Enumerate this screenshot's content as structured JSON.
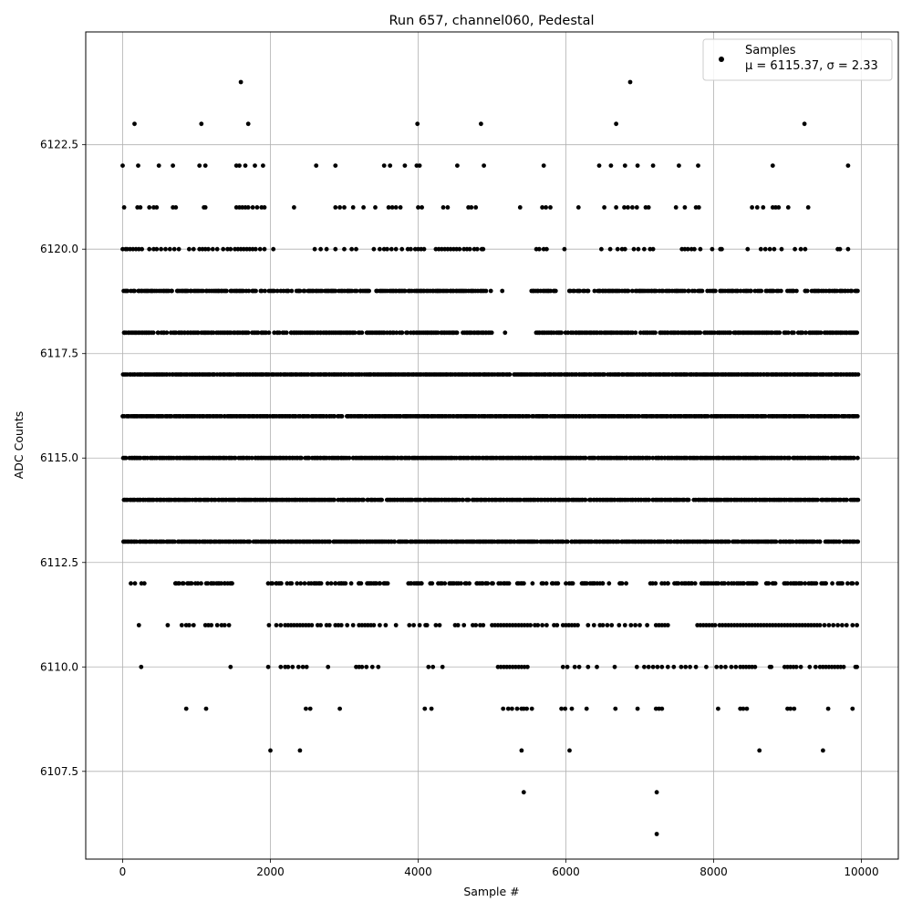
{
  "chart_data": {
    "type": "scatter",
    "title": "Run 657, channel060, Pedestal",
    "xlabel": "Sample #",
    "ylabel": "ADC Counts",
    "xlim": [
      -500,
      10500
    ],
    "ylim": [
      6105.4,
      6125.2
    ],
    "xticks": [
      0,
      2000,
      4000,
      6000,
      8000,
      10000
    ],
    "xtick_labels": [
      "0",
      "2000",
      "4000",
      "6000",
      "8000",
      "10000"
    ],
    "yticks": [
      6107.5,
      6110.0,
      6112.5,
      6115.0,
      6117.5,
      6120.0,
      6122.5
    ],
    "ytick_labels": [
      "6107.5",
      "6110.0",
      "6112.5",
      "6115.0",
      "6117.5",
      "6120.0",
      "6122.5"
    ],
    "grid": true,
    "legend_position": "top-right",
    "n_samples": 10000,
    "series": [
      {
        "name": "Samples",
        "stats_label": "μ = 6115.37, σ = 2.33",
        "color": "#000000",
        "marker": "circle",
        "levels": [
          {
            "y": 6124,
            "x": [
              1600,
              6870
            ]
          },
          {
            "y": 6123,
            "x": [
              160,
              1065,
              1700,
              3990,
              4850,
              6680,
              9230
            ]
          },
          {
            "y": 6122,
            "x": [
              0,
              210,
              490,
              680,
              1040,
              1120,
              1540,
              1580,
              1660,
              1790,
              1900,
              2620,
              2880,
              3540,
              3620,
              3820,
              3980,
              4020,
              4530,
              4890,
              5700,
              6450,
              6610,
              6800,
              6970,
              7180,
              7530,
              7790,
              8800,
              9820
            ]
          },
          {
            "y": 6121,
            "x": [
              20,
              200,
              240,
              360,
              420,
              460,
              680,
              720,
              1100,
              1120,
              1540,
              1580,
              1620,
              1660,
              1700,
              1760,
              1820,
              1880,
              1920,
              2320,
              2880,
              2940,
              3000,
              3120,
              3260,
              3420,
              3600,
              3650,
              3700,
              3760,
              4000,
              4050,
              4340,
              4400,
              4680,
              4720,
              4780,
              5380,
              5680,
              5730,
              5790,
              6170,
              6520,
              6680,
              6790,
              6840,
              6900,
              6960,
              7080,
              7120,
              7490,
              7610,
              7760,
              7800,
              8520,
              8590,
              8670,
              8800,
              8840,
              8880,
              9010,
              9280
            ]
          },
          {
            "y": 6120,
            "x": [
              0,
              40,
              60,
              100,
              140,
              180,
              220,
              260,
              360,
              420,
              460,
              520,
              580,
              640,
              700,
              760,
              900,
              960,
              1040,
              1080,
              1120,
              1160,
              1220,
              1280,
              1360,
              1420,
              1460,
              1520,
              1560,
              1600,
              1640,
              1680,
              1720,
              1760,
              1800,
              1860,
              1920,
              2040,
              2600,
              2680,
              2760,
              2880,
              3000,
              3100,
              3160,
              3400,
              3480,
              3540,
              3580,
              3640,
              3700,
              3780,
              3860,
              3900,
              3960,
              4000,
              4040,
              4080,
              4240,
              4280,
              4320,
              4360,
              4400,
              4440,
              4480,
              4520,
              4560,
              4620,
              4660,
              4700,
              4760,
              4800,
              4860,
              4880,
              5600,
              5640,
              5700,
              5740,
              5980,
              6480,
              6600,
              6700,
              6760,
              6800,
              6920,
              6980,
              7060,
              7140,
              7180,
              7570,
              7610,
              7650,
              7700,
              7740,
              7820,
              7980,
              8090,
              8110,
              8460,
              8640,
              8700,
              8760,
              8820,
              8920,
              9100,
              9180,
              9240,
              9680,
              9710,
              9820
            ]
          },
          {
            "y": 6119,
            "density": 0.75,
            "x_start": 0,
            "x_end": 9940,
            "step": 20,
            "gaps": [
              [
                5010,
                5100
              ],
              [
                5160,
                5500
              ],
              [
                5880,
                6030
              ]
            ]
          },
          {
            "y": 6118,
            "density": 0.85,
            "x_start": 0,
            "x_end": 9940,
            "step": 20,
            "gaps": [
              [
                5000,
                5150
              ],
              [
                5180,
                5400
              ],
              [
                5420,
                5560
              ]
            ]
          },
          {
            "y": 6117,
            "density": 0.95,
            "x_start": 0,
            "x_end": 9940,
            "step": 20,
            "gaps": []
          },
          {
            "y": 6116,
            "density": 0.95,
            "x_start": 0,
            "x_end": 9940,
            "step": 20,
            "gaps": []
          },
          {
            "y": 6115,
            "density": 0.95,
            "x_start": 0,
            "x_end": 9940,
            "step": 20,
            "gaps": []
          },
          {
            "y": 6114,
            "density": 0.95,
            "x_start": 0,
            "x_end": 9940,
            "step": 20,
            "gaps": []
          },
          {
            "y": 6113,
            "density": 0.9,
            "x_start": 0,
            "x_end": 9940,
            "step": 20,
            "gaps": []
          },
          {
            "y": 6112,
            "density": 0.55,
            "x_start": 100,
            "x_end": 9940,
            "step": 20,
            "gaps": [
              [
                300,
                620
              ],
              [
                1500,
                1950
              ],
              [
                3600,
                3850
              ],
              [
                6600,
                6700
              ],
              [
                6850,
                7000
              ]
            ]
          },
          {
            "y": 6111,
            "x": [
              220,
              610,
              800,
              860,
              900,
              960,
              1120,
              1160,
              1200,
              1280,
              1340,
              1380,
              1440,
              1980,
              2080,
              2140,
              2200,
              2240,
              2280,
              2320,
              2360,
              2400,
              2440,
              2480,
              2520,
              2560,
              2640,
              2680,
              2760,
              2800,
              2880,
              2920,
              2960,
              3040,
              3120,
              3200,
              3240,
              3280,
              3320,
              3360,
              3400,
              3480,
              3560,
              3700,
              3880,
              3940,
              4020,
              4100,
              4120,
              4240,
              4290,
              4500,
              4540,
              4620,
              4740,
              4780,
              4840,
              4880,
              5000,
              5040,
              5080,
              5120,
              5160,
              5200,
              5240,
              5280,
              5320,
              5360,
              5400,
              5440,
              5480,
              5520,
              5580,
              5620,
              5680,
              5740,
              5840,
              5880,
              5960,
              6000,
              6040,
              6080,
              6120,
              6160,
              6300,
              6380,
              6460,
              6500,
              6560,
              6620,
              6720,
              6800,
              6880,
              6940,
              7000,
              7100,
              7220,
              7260,
              7300,
              7340,
              7380,
              7780,
              7820,
              7860,
              7900,
              7940,
              7980,
              8020,
              8080,
              8120,
              8160,
              8200,
              8240,
              8280,
              8320,
              8360,
              8400,
              8440,
              8480,
              8520,
              8560,
              8600,
              8640,
              8680,
              8720,
              8760,
              8800,
              8840,
              8880,
              8920,
              8960,
              9000,
              9040,
              9080,
              9120,
              9160,
              9200,
              9240,
              9280,
              9320,
              9360,
              9400,
              9440,
              9500,
              9560,
              9620,
              9680,
              9740,
              9800,
              9880,
              9940
            ]
          },
          {
            "y": 6110,
            "x": [
              250,
              1460,
              1970,
              2140,
              2200,
              2240,
              2300,
              2380,
              2440,
              2490,
              2780,
              3160,
              3200,
              3240,
              3300,
              3380,
              3460,
              4140,
              4200,
              4330,
              5080,
              5120,
              5160,
              5200,
              5240,
              5280,
              5320,
              5360,
              5400,
              5440,
              5480,
              5960,
              6020,
              6120,
              6180,
              6300,
              6420,
              6660,
              6960,
              7060,
              7120,
              7180,
              7240,
              7300,
              7380,
              7460,
              7560,
              7620,
              7680,
              7760,
              7900,
              8040,
              8100,
              8160,
              8240,
              8300,
              8360,
              8400,
              8440,
              8480,
              8520,
              8560,
              8760,
              8780,
              8960,
              9000,
              9040,
              9080,
              9120,
              9180,
              9300,
              9380,
              9440,
              9480,
              9520,
              9560,
              9600,
              9640,
              9680,
              9720,
              9760,
              9920,
              9940
            ]
          },
          {
            "y": 6109,
            "x": [
              860,
              1130,
              2480,
              2540,
              2940,
              4090,
              4180,
              5150,
              5220,
              5270,
              5340,
              5400,
              5430,
              5470,
              5540,
              5940,
              5990,
              6080,
              6280,
              6670,
              6970,
              7220,
              7260,
              7300,
              8060,
              8360,
              8400,
              8450,
              9000,
              9040,
              9090,
              9550,
              9880
            ]
          },
          {
            "y": 6108,
            "x": [
              2000,
              2400,
              5400,
              6050,
              8620,
              9480
            ]
          },
          {
            "y": 6107,
            "x": [
              5430,
              7230
            ]
          },
          {
            "y": 6106,
            "x": [
              7230
            ]
          }
        ]
      }
    ]
  }
}
